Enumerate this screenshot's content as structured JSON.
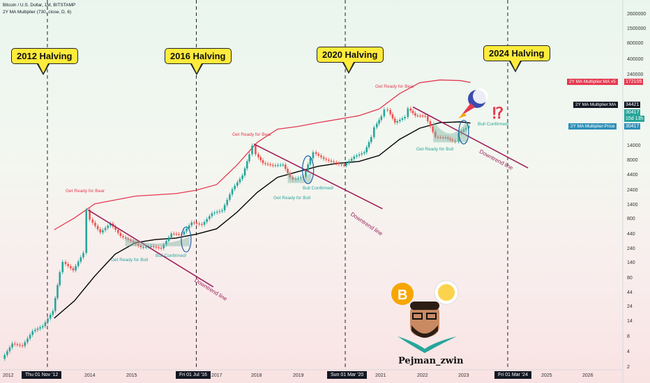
{
  "header": {
    "title": "Bitcoin / U.S. Dollar, 1M, BITSTAMP",
    "indicator": "2Y MA Multiplier (730, close, D, 6)"
  },
  "halvings": [
    "2012 Halving",
    "2016 Halving",
    "2020 Halving",
    "2024 Halving"
  ],
  "x_axis_labels": [
    "2012",
    "2014",
    "2015",
    "2017",
    "2018",
    "2019",
    "2021",
    "2022",
    "2023",
    "2025",
    "2026"
  ],
  "x_axis_boxes": [
    "Thu 01 Nov '12",
    "Fri 01 Jul '16",
    "Sun 01 Mar '20",
    "Fri 01 Mar '24"
  ],
  "y_axis_labels": [
    "2600000",
    "1500000",
    "800000",
    "400000",
    "240000",
    "14000",
    "8000",
    "4400",
    "2400",
    "1400",
    "800",
    "440",
    "240",
    "140",
    "80",
    "44",
    "24",
    "14",
    "8",
    "4",
    "2"
  ],
  "price_tags": {
    "ma_x5_label": "2Y MA Multiplier:MA x5",
    "ma_x5_value": "172105",
    "ma_label": "2Y MA Multiplier:MA",
    "ma_value": "34421",
    "price_value": "30417",
    "countdown": "15d 13h",
    "price_label": "2Y MA Multiplier:Price",
    "price_value2": "30417"
  },
  "annotations": {
    "bear1": "Get Ready for Bear",
    "bear2": "Get Ready for Bear",
    "bear3": "Get Ready for Bear",
    "bull1": "Get Ready for Bull",
    "bull2": "Get Ready for Bull",
    "bull3": "Get Ready for Bull",
    "confirm1": "Bull Confirmed!",
    "confirm2": "Bull Confirmed!",
    "confirm3": "Bull Confirmed!",
    "down1": "Downtrend line",
    "down2": "Downtrend line",
    "down3": "Downtrend line",
    "interrobang": "⁉"
  },
  "author": "Pejman_zwin",
  "colors": {
    "up": "#26a69a",
    "down": "#ef5350",
    "ma": "#000000",
    "ma_x5": "#e53950",
    "trend": "#9c1f5a",
    "price_tag": "#2e8fb8"
  },
  "chart_data": {
    "type": "candlestick",
    "scale": "log",
    "timeframe": "1M",
    "ylim": [
      2,
      2600000
    ],
    "xlim": [
      "2011-09",
      "2026-12"
    ],
    "series": [
      {
        "name": "2Y MA Multiplier:MA x5",
        "points": [
          [
            "2013-01",
            500
          ],
          [
            "2013-07",
            800
          ],
          [
            "2014-01",
            1400
          ],
          [
            "2015-01",
            1900
          ],
          [
            "2016-01",
            2100
          ],
          [
            "2016-07",
            2400
          ],
          [
            "2017-01",
            3000
          ],
          [
            "2017-07",
            6500
          ],
          [
            "2018-01",
            16000
          ],
          [
            "2018-07",
            27000
          ],
          [
            "2019-01",
            30000
          ],
          [
            "2019-07",
            35000
          ],
          [
            "2020-01",
            40000
          ],
          [
            "2020-07",
            46000
          ],
          [
            "2021-01",
            60000
          ],
          [
            "2021-07",
            110000
          ],
          [
            "2022-01",
            170000
          ],
          [
            "2022-07",
            190000
          ],
          [
            "2023-01",
            185000
          ],
          [
            "2023-04",
            172105
          ]
        ]
      },
      {
        "name": "2Y MA Multiplier:MA",
        "points": [
          [
            "2013-01",
            15
          ],
          [
            "2013-07",
            30
          ],
          [
            "2014-01",
            80
          ],
          [
            "2014-07",
            190
          ],
          [
            "2015-01",
            300
          ],
          [
            "2015-07",
            340
          ],
          [
            "2016-01",
            360
          ],
          [
            "2016-07",
            420
          ],
          [
            "2017-01",
            520
          ],
          [
            "2017-07",
            1000
          ],
          [
            "2018-01",
            2200
          ],
          [
            "2018-07",
            4000
          ],
          [
            "2019-01",
            5000
          ],
          [
            "2019-07",
            6200
          ],
          [
            "2020-01",
            7000
          ],
          [
            "2020-07",
            7500
          ],
          [
            "2021-01",
            9500
          ],
          [
            "2021-07",
            18000
          ],
          [
            "2022-01",
            28000
          ],
          [
            "2022-07",
            35000
          ],
          [
            "2023-01",
            36000
          ],
          [
            "2023-04",
            34421
          ]
        ]
      }
    ],
    "closes": [
      [
        "2011-10",
        3
      ],
      [
        "2012-01",
        5.5
      ],
      [
        "2012-04",
        5
      ],
      [
        "2012-07",
        9
      ],
      [
        "2012-10",
        11
      ],
      [
        "2013-01",
        20
      ],
      [
        "2013-03",
        93
      ],
      [
        "2013-04",
        140
      ],
      [
        "2013-07",
        100
      ],
      [
        "2013-10",
        200
      ],
      [
        "2013-11",
        1100
      ],
      [
        "2013-12",
        750
      ],
      [
        "2014-03",
        450
      ],
      [
        "2014-06",
        640
      ],
      [
        "2014-09",
        390
      ],
      [
        "2014-12",
        320
      ],
      [
        "2015-03",
        250
      ],
      [
        "2015-06",
        260
      ],
      [
        "2015-09",
        240
      ],
      [
        "2015-12",
        430
      ],
      [
        "2016-03",
        415
      ],
      [
        "2016-06",
        670
      ],
      [
        "2016-09",
        610
      ],
      [
        "2016-12",
        960
      ],
      [
        "2017-03",
        1080
      ],
      [
        "2017-06",
        2500
      ],
      [
        "2017-09",
        4300
      ],
      [
        "2017-11",
        10000
      ],
      [
        "2017-12",
        14000
      ],
      [
        "2018-01",
        10000
      ],
      [
        "2018-03",
        7000
      ],
      [
        "2018-06",
        6400
      ],
      [
        "2018-09",
        6600
      ],
      [
        "2018-11",
        4000
      ],
      [
        "2018-12",
        3700
      ],
      [
        "2019-03",
        4100
      ],
      [
        "2019-05",
        8500
      ],
      [
        "2019-06",
        10800
      ],
      [
        "2019-09",
        8300
      ],
      [
        "2019-12",
        7200
      ],
      [
        "2020-03",
        6400
      ],
      [
        "2020-06",
        9100
      ],
      [
        "2020-09",
        10800
      ],
      [
        "2020-11",
        19700
      ],
      [
        "2020-12",
        29000
      ],
      [
        "2021-02",
        45000
      ],
      [
        "2021-03",
        58800
      ],
      [
        "2021-04",
        57700
      ],
      [
        "2021-06",
        35000
      ],
      [
        "2021-09",
        43800
      ],
      [
        "2021-10",
        61300
      ],
      [
        "2021-12",
        46300
      ],
      [
        "2022-03",
        45500
      ],
      [
        "2022-06",
        19800
      ],
      [
        "2022-09",
        19400
      ],
      [
        "2022-11",
        17100
      ],
      [
        "2022-12",
        16500
      ],
      [
        "2023-01",
        23100
      ],
      [
        "2023-03",
        28400
      ],
      [
        "2023-04",
        30417
      ]
    ],
    "halvings": [
      "2012-11",
      "2016-07",
      "2020-03",
      "2024-03"
    ]
  }
}
